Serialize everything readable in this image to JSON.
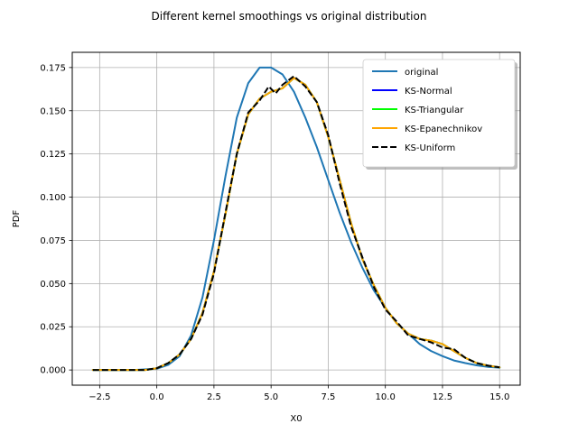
{
  "chart_data": {
    "type": "line",
    "title": "Different kernel smoothings vs original distribution",
    "xlabel": "X0",
    "ylabel": "PDF",
    "xlim": [
      -3.7,
      15.9
    ],
    "ylim": [
      -0.0088,
      0.1838
    ],
    "grid": true,
    "legend_position": "top-right",
    "x_ticks": [
      -2.5,
      0.0,
      2.5,
      5.0,
      7.5,
      10.0,
      12.5,
      15.0
    ],
    "x_tick_labels": [
      "−2.5",
      "0.0",
      "2.5",
      "5.0",
      "7.5",
      "10.0",
      "12.5",
      "15.0"
    ],
    "y_ticks": [
      0.0,
      0.025,
      0.05,
      0.075,
      0.1,
      0.125,
      0.15,
      0.175
    ],
    "y_tick_labels": [
      "0.000",
      "0.025",
      "0.050",
      "0.075",
      "0.100",
      "0.125",
      "0.150",
      "0.175"
    ],
    "series": [
      {
        "name": "original",
        "color": "#1f77b4",
        "dash": "solid",
        "x": [
          -2.8,
          -1.0,
          0.0,
          0.5,
          1.0,
          1.5,
          2.0,
          2.5,
          3.0,
          3.5,
          4.0,
          4.5,
          5.0,
          5.5,
          6.0,
          6.5,
          7.0,
          7.5,
          8.0,
          8.5,
          9.0,
          9.5,
          10.0,
          10.5,
          11.0,
          11.5,
          12.0,
          12.5,
          13.0,
          13.5,
          14.0,
          14.5,
          15.0
        ],
        "y": [
          0.0,
          0.0,
          0.0007,
          0.003,
          0.008,
          0.02,
          0.042,
          0.075,
          0.112,
          0.146,
          0.166,
          0.175,
          0.175,
          0.171,
          0.161,
          0.146,
          0.129,
          0.11,
          0.091,
          0.074,
          0.059,
          0.046,
          0.036,
          0.027,
          0.021,
          0.015,
          0.011,
          0.008,
          0.0055,
          0.004,
          0.0027,
          0.0018,
          0.0013
        ]
      },
      {
        "name": "KS-Normal",
        "color": "#0000ff",
        "dash": "solid",
        "x": [
          -2.8,
          -0.5,
          0.0,
          0.5,
          1.0,
          1.5,
          2.0,
          2.5,
          3.0,
          3.5,
          4.0,
          4.5,
          5.0,
          5.5,
          6.0,
          6.5,
          7.0,
          7.5,
          8.0,
          8.5,
          9.0,
          9.5,
          10.0,
          10.5,
          11.0,
          11.5,
          12.0,
          12.5,
          13.0,
          13.5,
          14.0,
          14.5,
          15.0
        ],
        "y": [
          0.0,
          0.0,
          0.001,
          0.004,
          0.009,
          0.018,
          0.033,
          0.057,
          0.09,
          0.125,
          0.148,
          0.157,
          0.161,
          0.163,
          0.169,
          0.165,
          0.155,
          0.135,
          0.11,
          0.085,
          0.064,
          0.049,
          0.036,
          0.027,
          0.021,
          0.018,
          0.017,
          0.015,
          0.011,
          0.007,
          0.004,
          0.0025,
          0.0015
        ]
      },
      {
        "name": "KS-Triangular",
        "color": "#00ff00",
        "dash": "solid",
        "x": [
          -2.8,
          -0.5,
          0.0,
          0.5,
          1.0,
          1.5,
          2.0,
          2.5,
          3.0,
          3.5,
          4.0,
          4.5,
          5.0,
          5.5,
          6.0,
          6.5,
          7.0,
          7.5,
          8.0,
          8.5,
          9.0,
          9.5,
          10.0,
          10.5,
          11.0,
          11.5,
          12.0,
          12.5,
          13.0,
          13.5,
          14.0,
          14.5,
          15.0
        ],
        "y": [
          0.0,
          0.0,
          0.001,
          0.004,
          0.009,
          0.018,
          0.033,
          0.057,
          0.09,
          0.125,
          0.148,
          0.157,
          0.161,
          0.163,
          0.169,
          0.165,
          0.155,
          0.135,
          0.11,
          0.085,
          0.064,
          0.049,
          0.036,
          0.027,
          0.021,
          0.018,
          0.017,
          0.015,
          0.011,
          0.007,
          0.004,
          0.0025,
          0.0015
        ]
      },
      {
        "name": "KS-Epanechnikov",
        "color": "#ffa500",
        "dash": "solid",
        "x": [
          -2.8,
          -0.5,
          0.0,
          0.5,
          1.0,
          1.5,
          2.0,
          2.5,
          3.0,
          3.5,
          4.0,
          4.5,
          5.0,
          5.5,
          6.0,
          6.5,
          7.0,
          7.5,
          8.0,
          8.5,
          9.0,
          9.5,
          10.0,
          10.5,
          11.0,
          11.5,
          12.0,
          12.5,
          13.0,
          13.5,
          14.0,
          14.5,
          15.0
        ],
        "y": [
          0.0,
          0.0,
          0.001,
          0.004,
          0.009,
          0.018,
          0.033,
          0.057,
          0.09,
          0.125,
          0.148,
          0.157,
          0.161,
          0.163,
          0.169,
          0.165,
          0.155,
          0.135,
          0.11,
          0.085,
          0.064,
          0.049,
          0.036,
          0.027,
          0.021,
          0.018,
          0.017,
          0.015,
          0.011,
          0.007,
          0.004,
          0.0025,
          0.0015
        ]
      },
      {
        "name": "KS-Uniform",
        "color": "#000000",
        "dash": "dashed",
        "x": [
          -2.8,
          -0.5,
          0.0,
          0.5,
          1.0,
          1.5,
          2.0,
          2.5,
          3.0,
          3.5,
          4.0,
          4.5,
          4.9,
          5.2,
          5.5,
          6.0,
          6.5,
          7.0,
          7.5,
          8.0,
          8.5,
          9.0,
          9.5,
          10.0,
          10.5,
          11.0,
          11.5,
          12.0,
          12.5,
          13.0,
          13.5,
          14.0,
          14.5,
          15.0
        ],
        "y": [
          0.0,
          0.0,
          0.001,
          0.004,
          0.009,
          0.018,
          0.032,
          0.056,
          0.091,
          0.125,
          0.149,
          0.156,
          0.164,
          0.16,
          0.165,
          0.17,
          0.164,
          0.155,
          0.136,
          0.108,
          0.083,
          0.065,
          0.048,
          0.035,
          0.028,
          0.02,
          0.018,
          0.016,
          0.013,
          0.012,
          0.007,
          0.004,
          0.0025,
          0.0015
        ]
      }
    ]
  }
}
